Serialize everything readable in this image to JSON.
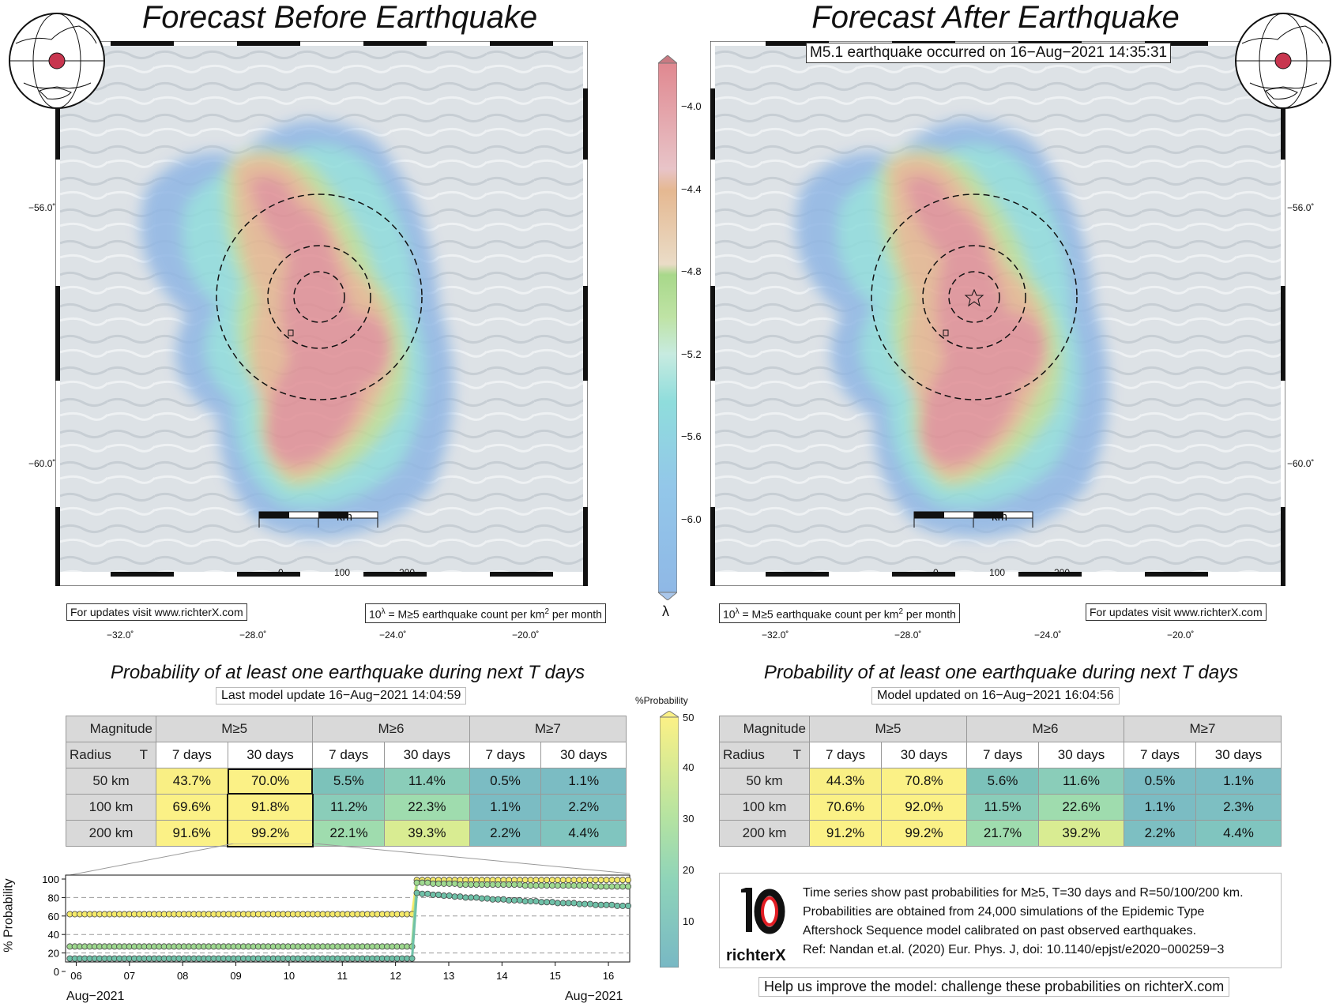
{
  "left_panel": {
    "title": "Forecast Before Earthquake",
    "lat_labels": [
      "−56.0˚",
      "−60.0˚"
    ],
    "lon_labels": [
      "−32.0˚",
      "−28.0˚",
      "−24.0˚",
      "−20.0˚"
    ],
    "scale_bar": {
      "unit": "km",
      "ticks": [
        "0",
        "100",
        "200"
      ]
    },
    "footer_left": "For updates visit www.richterX.com",
    "footer_right": "10λ = M≥5 earthquake count per km2 per month"
  },
  "right_panel": {
    "title": "Forecast After Earthquake",
    "event_banner": "M5.1 earthquake occurred on 16−Aug−2021 14:35:31",
    "lat_labels": [
      "−56.0˚",
      "−60.0˚"
    ],
    "lon_labels": [
      "−32.0˚",
      "−28.0˚",
      "−24.0˚",
      "−20.0˚"
    ],
    "scale_bar": {
      "unit": "km",
      "ticks": [
        "0",
        "100",
        "200"
      ]
    },
    "footer_left": "10λ = M≥5 earthquake count per km2 per month",
    "footer_right": "For updates visit www.richterX.com"
  },
  "lambda_colorbar": {
    "symbol": "λ",
    "ticks": [
      "−4.0",
      "−4.4",
      "−4.8",
      "−5.2",
      "−5.6",
      "−6.0"
    ]
  },
  "prob_colorbar": {
    "title": "%Probability",
    "ticks": [
      "50",
      "40",
      "30",
      "20",
      "10"
    ]
  },
  "left_table": {
    "title": "Probability of at least one earthquake during next T days",
    "update": "Last model update 16−Aug−2021 14:04:59",
    "corner_top": "Magnitude",
    "corner_bottom_left": "Radius",
    "corner_bottom_right": "T",
    "magnitudes": [
      "M≥5",
      "M≥6",
      "M≥7"
    ],
    "periods": [
      "7 days",
      "30 days",
      "7 days",
      "30 days",
      "7 days",
      "30 days"
    ],
    "rows": [
      {
        "radius": "50 km",
        "values": [
          "43.7%",
          "70.0%",
          "5.5%",
          "11.4%",
          "0.5%",
          "1.1%"
        ]
      },
      {
        "radius": "100 km",
        "values": [
          "69.6%",
          "91.8%",
          "11.2%",
          "22.3%",
          "1.1%",
          "2.2%"
        ]
      },
      {
        "radius": "200 km",
        "values": [
          "91.6%",
          "99.2%",
          "22.1%",
          "39.3%",
          "2.2%",
          "4.4%"
        ]
      }
    ]
  },
  "right_table": {
    "title": "Probability of at least one earthquake during next T days",
    "update": "Model updated on 16−Aug−2021 16:04:56",
    "corner_top": "Magnitude",
    "corner_bottom_left": "Radius",
    "corner_bottom_right": "T",
    "magnitudes": [
      "M≥5",
      "M≥6",
      "M≥7"
    ],
    "periods": [
      "7 days",
      "30 days",
      "7 days",
      "30 days",
      "7 days",
      "30 days"
    ],
    "rows": [
      {
        "radius": "50 km",
        "values": [
          "44.3%",
          "70.8%",
          "5.6%",
          "11.6%",
          "0.5%",
          "1.1%"
        ]
      },
      {
        "radius": "100 km",
        "values": [
          "70.6%",
          "92.0%",
          "11.5%",
          "22.6%",
          "1.1%",
          "2.3%"
        ]
      },
      {
        "radius": "200 km",
        "values": [
          "91.2%",
          "99.2%",
          "21.7%",
          "39.2%",
          "2.2%",
          "4.4%"
        ]
      }
    ]
  },
  "chart_data": {
    "type": "line",
    "title": "",
    "ylabel": "% Probability",
    "xlabel": "",
    "ylim": [
      0,
      100
    ],
    "yticks": [
      "0",
      "20",
      "40",
      "60",
      "80",
      "100"
    ],
    "xticks": [
      "06",
      "07",
      "08",
      "09",
      "10",
      "11",
      "12",
      "13",
      "14",
      "15",
      "16"
    ],
    "xlabel_start": "Aug−2021",
    "xlabel_end": "Aug−2021",
    "x_start_day": 5.8,
    "x_end_day": 16.4,
    "change_day": 12.35,
    "series": [
      {
        "color": "#f5ea6a",
        "before": 62,
        "after": [
          99,
          99,
          99,
          99,
          99,
          99,
          99,
          99,
          99,
          99,
          99,
          99,
          99,
          99,
          99,
          99,
          99,
          99,
          99,
          99,
          99,
          99,
          99,
          99,
          99,
          99,
          99,
          99,
          99,
          99,
          99,
          99,
          99,
          99,
          99,
          99,
          99,
          99,
          99,
          99
        ]
      },
      {
        "color": "#9ed98f",
        "before": 27,
        "after": [
          96,
          96,
          96,
          95,
          95,
          95,
          95,
          95,
          94,
          94,
          94,
          94,
          94,
          94,
          94,
          94,
          94,
          94,
          94,
          94,
          93,
          93,
          93,
          93,
          93,
          93,
          93,
          93,
          93,
          93,
          93,
          93,
          93,
          92,
          92,
          92,
          92,
          92,
          92,
          92
        ]
      },
      {
        "color": "#6fc1a8",
        "before": 14,
        "after": [
          85,
          84,
          84,
          83,
          83,
          82,
          82,
          81,
          81,
          80,
          80,
          80,
          79,
          79,
          78,
          78,
          78,
          77,
          77,
          77,
          76,
          76,
          76,
          75,
          75,
          75,
          74,
          74,
          74,
          74,
          73,
          73,
          73,
          72,
          72,
          72,
          72,
          71,
          71,
          71
        ]
      }
    ]
  },
  "info_note": {
    "logo_text": "richterX",
    "lines": [
      "Time series show past probabilities for M≥5, T=30 days and R=50/100/200 km.",
      "Probabilities are obtained from 24,000 simulations of the Epidemic Type",
      "Aftershock Sequence model calibrated on past observed earthquakes.",
      "Ref: Nandan et.al. (2020) Eur. Phys. J, doi: 10.1140/epjst/e2020−000259−3"
    ]
  },
  "help_text": "Help us improve the model: challenge these probabilities on richterX.com"
}
